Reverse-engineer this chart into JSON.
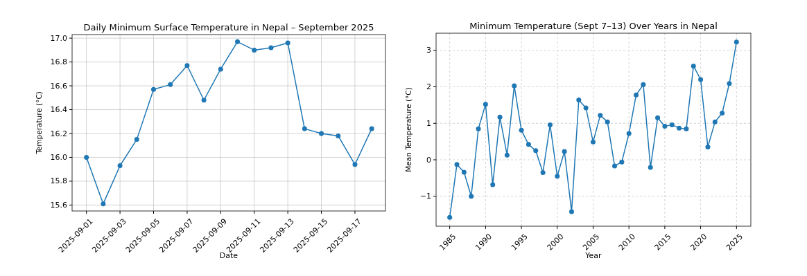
{
  "chart_data": [
    {
      "type": "line",
      "title": "Daily Minimum Surface Temperature in Nepal – September 2025",
      "xlabel": "Date",
      "ylabel": "Temperature (°C)",
      "x": [
        "2025-09-01",
        "2025-09-02",
        "2025-09-03",
        "2025-09-04",
        "2025-09-05",
        "2025-09-06",
        "2025-09-07",
        "2025-09-08",
        "2025-09-09",
        "2025-09-10",
        "2025-09-11",
        "2025-09-12",
        "2025-09-13",
        "2025-09-14",
        "2025-09-15",
        "2025-09-16",
        "2025-09-17",
        "2025-09-18"
      ],
      "series": [
        {
          "color": "#1f77b4",
          "values": [
            16.0,
            15.61,
            15.93,
            16.15,
            16.57,
            16.61,
            16.77,
            16.48,
            16.74,
            16.97,
            16.9,
            16.92,
            16.96,
            16.24,
            16.2,
            16.18,
            15.94,
            16.24
          ]
        }
      ],
      "xlim": [
        "2025-08-31T03:30",
        "2025-09-18T19:40"
      ],
      "xticks": [
        "2025-09-01",
        "2025-09-03",
        "2025-09-05",
        "2025-09-07",
        "2025-09-09",
        "2025-09-11",
        "2025-09-13",
        "2025-09-15",
        "2025-09-17"
      ],
      "ylim": [
        15.55,
        17.03
      ],
      "yticks": [
        {
          "value": 15.6,
          "label": "15.6"
        },
        {
          "value": 15.8,
          "label": "15.8"
        },
        {
          "value": 16.0,
          "label": "16.0"
        },
        {
          "value": 16.2,
          "label": "16.2"
        },
        {
          "value": 16.4,
          "label": "16.4"
        },
        {
          "value": 16.6,
          "label": "16.6"
        },
        {
          "value": 16.8,
          "label": "16.8"
        },
        {
          "value": 17.0,
          "label": "17.0"
        }
      ],
      "grid": true,
      "marker": "circle",
      "line_style": "solid"
    },
    {
      "type": "line",
      "title": "Minimum Temperature (Sept 7–13) Over Years in Nepal",
      "xlabel": "Year",
      "ylabel": "Mean Temperature (°C)",
      "x": [
        1985,
        1986,
        1987,
        1988,
        1989,
        1990,
        1991,
        1992,
        1993,
        1994,
        1995,
        1996,
        1997,
        1998,
        1999,
        2000,
        2001,
        2002,
        2003,
        2004,
        2005,
        2006,
        2007,
        2008,
        2009,
        2010,
        2011,
        2012,
        2013,
        2014,
        2015,
        2016,
        2017,
        2018,
        2019,
        2020,
        2021,
        2022,
        2023,
        2024,
        2025
      ],
      "series": [
        {
          "color": "#1f77b4",
          "values": [
            -1.58,
            -0.13,
            -0.34,
            -1.0,
            0.85,
            1.52,
            -0.68,
            1.17,
            0.13,
            2.03,
            0.81,
            0.42,
            0.25,
            -0.35,
            0.96,
            -0.45,
            0.23,
            -1.42,
            1.64,
            1.42,
            0.49,
            1.22,
            1.04,
            -0.17,
            -0.06,
            0.72,
            1.78,
            2.06,
            -0.21,
            1.15,
            0.92,
            0.96,
            0.87,
            0.85,
            2.57,
            2.2,
            0.35,
            1.04,
            1.28,
            2.09,
            3.23
          ]
        }
      ],
      "xlim": [
        1983.1,
        2027.0
      ],
      "xticks": [
        1985,
        1990,
        1995,
        2000,
        2005,
        2010,
        2015,
        2020,
        2025
      ],
      "ylim": [
        -1.82,
        3.47
      ],
      "yticks": [
        {
          "value": -1,
          "label": "−1"
        },
        0,
        1,
        2,
        3
      ],
      "grid": true,
      "marker": "circle",
      "line_style": "solid"
    }
  ]
}
